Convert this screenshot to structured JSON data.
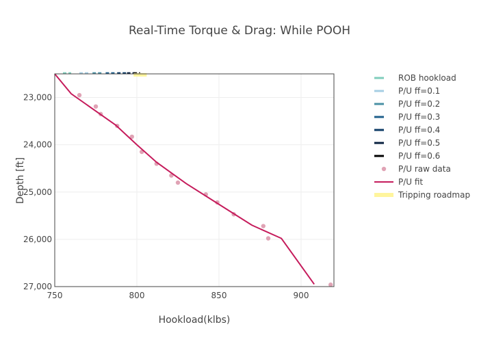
{
  "chart_data": {
    "type": "line",
    "title": "Real-Time Torque & Drag: While POOH",
    "xlabel": "Hookload(klbs)",
    "ylabel": "Depth [ft]",
    "xlim": [
      750,
      920
    ],
    "ylim": [
      27000,
      22500
    ],
    "y_reversed": true,
    "grid": true,
    "legend_position": "right",
    "x_ticks": [
      750,
      800,
      850,
      900
    ],
    "x_tick_labels": [
      "750",
      "800",
      "850",
      "900"
    ],
    "y_ticks": [
      23000,
      24000,
      25000,
      26000,
      27000
    ],
    "y_tick_labels": [
      "23,000",
      "24,000",
      "25,000",
      "26,000",
      "27,000"
    ],
    "series": [
      {
        "name": "ROB hookload",
        "kind": "dashed-line",
        "color": "#7fcdbb",
        "x": [
          755,
          760
        ],
        "y": [
          22480,
          22480
        ]
      },
      {
        "name": "P/U ff=0.1",
        "kind": "dashed-line",
        "color": "#a6cee3",
        "x": [
          765,
          771
        ],
        "y": [
          22480,
          22480
        ]
      },
      {
        "name": "P/U ff=0.2",
        "kind": "dashed-line",
        "color": "#4a90a4",
        "x": [
          773,
          779
        ],
        "y": [
          22480,
          22480
        ]
      },
      {
        "name": "P/U ff=0.3",
        "kind": "dashed-line",
        "color": "#1f5f8b",
        "x": [
          781,
          787
        ],
        "y": [
          22480,
          22480
        ]
      },
      {
        "name": "P/U ff=0.4",
        "kind": "dashed-line",
        "color": "#0d3b66",
        "x": [
          788,
          794
        ],
        "y": [
          22480,
          22480
        ]
      },
      {
        "name": "P/U ff=0.5",
        "kind": "dashed-line",
        "color": "#08203f",
        "x": [
          794,
          799
        ],
        "y": [
          22480,
          22480
        ]
      },
      {
        "name": "P/U ff=0.6",
        "kind": "dashed-line",
        "color": "#000000",
        "x": [
          798,
          802
        ],
        "y": [
          22480,
          22480
        ]
      },
      {
        "name": "P/U raw data",
        "kind": "markers",
        "color": "#e0a3b5",
        "x": [
          765,
          775,
          778,
          788,
          797,
          803,
          812,
          821,
          825,
          842,
          849,
          859,
          877,
          880,
          918
        ],
        "y": [
          22950,
          23190,
          23350,
          23600,
          23830,
          24150,
          24400,
          24650,
          24800,
          25050,
          25220,
          25470,
          25720,
          25980,
          26960
        ]
      },
      {
        "name": "P/U fit",
        "kind": "solid-line",
        "color": "#c51b5b",
        "x": [
          750,
          760,
          787,
          800,
          812,
          830,
          850,
          870,
          888,
          908
        ],
        "y": [
          22500,
          22920,
          23580,
          24000,
          24370,
          24820,
          25260,
          25700,
          25980,
          26950
        ]
      },
      {
        "name": "Tripping roadmap",
        "kind": "band",
        "color": "#fff59d",
        "x": [
          798,
          806
        ],
        "y": [
          22520,
          22520
        ]
      }
    ]
  }
}
